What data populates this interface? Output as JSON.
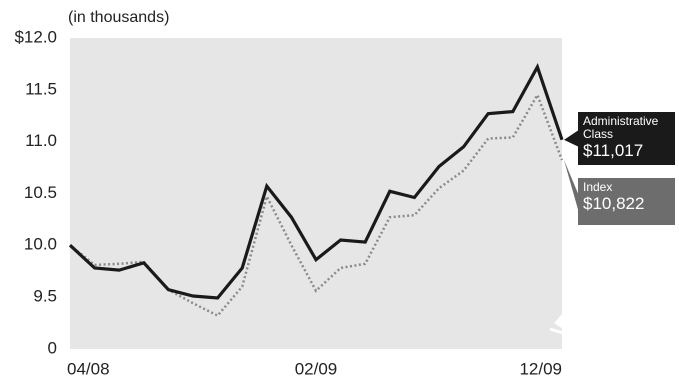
{
  "chart_data": {
    "type": "line",
    "subtitle": "(in thousands)",
    "categories": [
      "04/08",
      null,
      null,
      null,
      null,
      null,
      null,
      null,
      null,
      null,
      "02/09",
      null,
      null,
      null,
      null,
      null,
      null,
      null,
      null,
      null,
      "12/09"
    ],
    "series": [
      {
        "name": "Administrative Class",
        "color": "#1a1a1a",
        "values": [
          10.0,
          9.78,
          9.76,
          9.83,
          9.57,
          9.51,
          9.49,
          9.78,
          10.57,
          10.27,
          9.86,
          10.05,
          10.03,
          10.52,
          10.46,
          10.76,
          10.95,
          11.27,
          11.29,
          11.72,
          11.017
        ],
        "value_labels": [
          null,
          null,
          null,
          null,
          null,
          null,
          null,
          null,
          null,
          null,
          null,
          null,
          null,
          null,
          null,
          null,
          null,
          null,
          null,
          null,
          "$11,017"
        ]
      },
      {
        "name": "Index",
        "color": "#8a8a8a",
        "dashed": true,
        "values": [
          10.0,
          9.81,
          9.82,
          9.84,
          9.57,
          9.44,
          9.32,
          9.6,
          10.47,
          10.0,
          9.56,
          9.78,
          9.82,
          10.27,
          10.29,
          10.55,
          10.72,
          11.03,
          11.04,
          11.45,
          10.822
        ],
        "value_labels": [
          null,
          null,
          null,
          null,
          null,
          null,
          null,
          null,
          null,
          null,
          null,
          null,
          null,
          null,
          null,
          null,
          null,
          null,
          null,
          null,
          "$10,822"
        ]
      }
    ],
    "ylim": [
      0,
      12
    ],
    "y_break": [
      0,
      9.5
    ],
    "yticks": [
      0,
      9.5,
      {
        "value": 10,
        "label": "10.0"
      },
      10.5,
      {
        "value": 11,
        "label": "11.0"
      },
      11.5,
      {
        "value": 12,
        "label": "$12.0"
      }
    ],
    "background": "#e6e6e6"
  }
}
